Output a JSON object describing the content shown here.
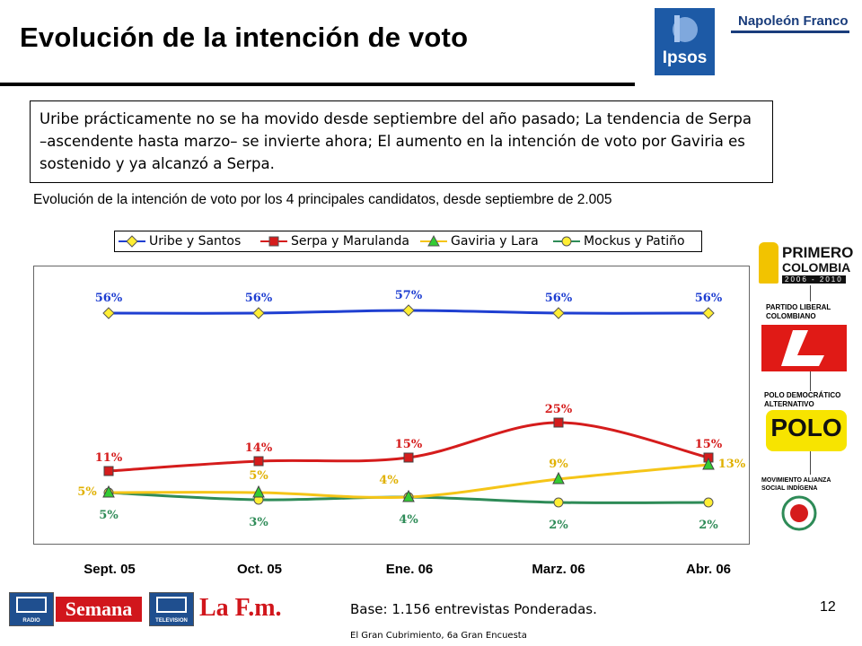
{
  "header": {
    "title": "Evolución de la intención de voto",
    "logo_ipsos": "Ipsos",
    "logo_partner": "Napoleón Franco"
  },
  "summary": {
    "text": "Uribe prácticamente no se ha movido desde septiembre del año pasado; La tendencia de Serpa –ascendente hasta marzo– se invierte ahora; El aumento en la intención de voto por Gaviria es sostenido y ya alcanzó a Serpa."
  },
  "chart_data": {
    "type": "line",
    "title": "Evolución de la intención de voto por los 4 principales candidatos, desde septiembre de 2.005",
    "categories": [
      "Sept. 05",
      "Oct. 05",
      "Ene. 06",
      "Marz. 06",
      "Abr. 06"
    ],
    "ylim": [
      0,
      60
    ],
    "legend_position": "top",
    "grid": false,
    "series": [
      {
        "name": "Uribe y Santos",
        "values": [
          56,
          56,
          57,
          56,
          56
        ],
        "labels": [
          "56%",
          "56%",
          "57%",
          "56%",
          "56%"
        ],
        "color": "#1f3fd1",
        "marker": "diamond",
        "marker_color": "#ffee33",
        "label_color": "#1f3fd1"
      },
      {
        "name": "Serpa y Marulanda",
        "values": [
          11,
          14,
          15,
          25,
          15
        ],
        "labels": [
          "11%",
          "14%",
          "15%",
          "25%",
          "15%"
        ],
        "color": "#d51c1c",
        "marker": "square",
        "marker_color": "#d51c1c",
        "label_color": "#d51c1c"
      },
      {
        "name": "Gaviria y Lara",
        "values": [
          5,
          5,
          4,
          9,
          13
        ],
        "labels": [
          "5%",
          "5%",
          "4%",
          "9%",
          "13%"
        ],
        "color": "#f5c518",
        "marker": "triangle",
        "marker_color": "#33cc33",
        "label_color": "#e0b000"
      },
      {
        "name": "Mockus y Patiño",
        "values": [
          5,
          3,
          4,
          2,
          2
        ],
        "labels": [
          "5%",
          "3%",
          "4%",
          "2%",
          "2%"
        ],
        "color": "#2e8b57",
        "marker": "circle",
        "marker_color": "#ffee33",
        "label_color": "#2e8b57"
      }
    ]
  },
  "parties": {
    "primero_line1": "PRIMERO",
    "primero_line2": "COLOMBIA",
    "primero_years": "2006 - 2010",
    "liberal_label": "PARTIDO LIBERAL COLOMBIANO",
    "polo_label": "POLO DEMOCRÁTICO ALTERNATIVO",
    "polo_logo": "POLO",
    "mais_label": "MOVIMIENTO ALIANZA SOCIAL INDÍGENA"
  },
  "footer": {
    "rcn_radio": "RADIO",
    "semana": "Semana",
    "rcn_tv": "TELEVISION",
    "lafm": "La F.m.",
    "base": "Base: 1.156 entrevistas Ponderadas.",
    "source": "El Gran Cubrimiento, 6a Gran Encuesta",
    "page_number": "12"
  }
}
